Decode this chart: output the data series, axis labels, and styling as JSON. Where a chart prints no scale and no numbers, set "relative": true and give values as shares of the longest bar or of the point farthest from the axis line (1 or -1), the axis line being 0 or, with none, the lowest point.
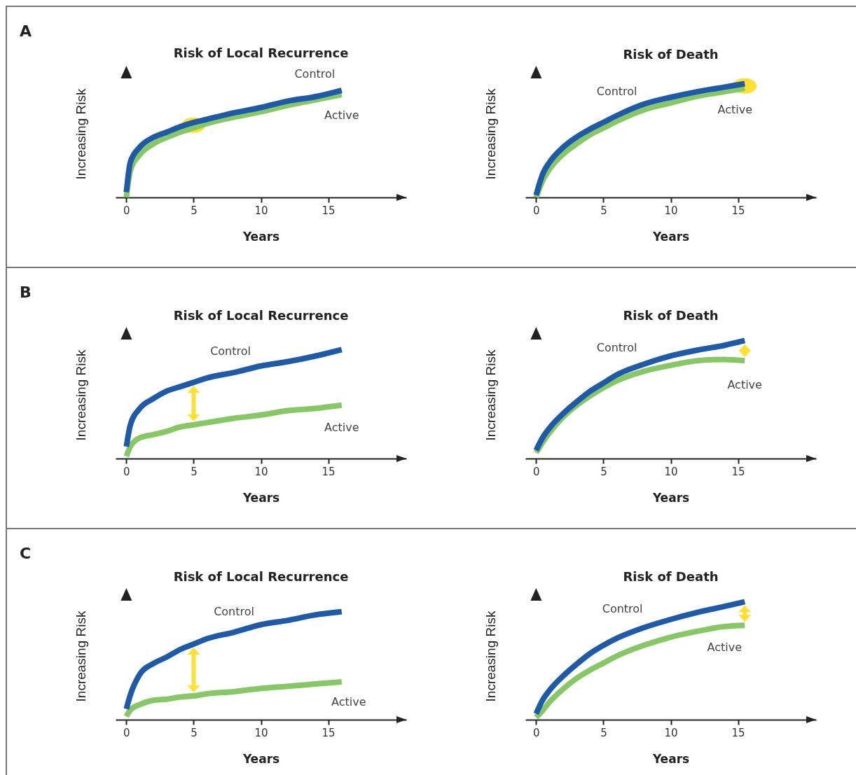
{
  "chart_data": [
    {
      "type": "line",
      "title": "Risk of Local Recurrence",
      "xlabel": "Years",
      "ylabel": "Increasing Risk",
      "relative": true,
      "xlim": [
        -0.8,
        20.8
      ],
      "xticks": [
        0,
        5,
        10,
        15
      ],
      "tick_labels": "x",
      "annotations": [
        "A"
      ],
      "series": [
        {
          "name": "Control",
          "color": "#1f5aa8",
          "x": [
            0,
            0.3,
            1,
            2,
            3,
            4,
            5,
            6,
            8,
            10,
            12,
            14,
            16
          ],
          "values": [
            0.05,
            0.33,
            0.47,
            0.56,
            0.61,
            0.66,
            0.7,
            0.73,
            0.79,
            0.84,
            0.9,
            0.94,
            1
          ]
        },
        {
          "name": "Active",
          "color": "#88c766",
          "x": [
            0,
            0.3,
            1,
            2,
            3,
            4,
            5,
            6,
            8,
            10,
            12,
            14,
            16
          ],
          "values": [
            0,
            0.25,
            0.4,
            0.5,
            0.56,
            0.61,
            0.65,
            0.69,
            0.75,
            0.8,
            0.86,
            0.91,
            0.96
          ]
        }
      ]
    },
    {
      "type": "line",
      "title": "Risk of Death",
      "xlabel": "Years",
      "ylabel": "Increasing Risk",
      "relative": true,
      "xlim": [
        -0.8,
        20.8
      ],
      "xticks": [
        0,
        5,
        10,
        15
      ],
      "tick_labels": "x",
      "series": [
        {
          "name": "Control",
          "color": "#1f5aa8",
          "x": [
            0,
            0.5,
            1,
            2,
            3,
            4,
            5,
            6,
            8,
            10,
            12,
            14,
            15.5
          ],
          "values": [
            0.02,
            0.21,
            0.31,
            0.44,
            0.53,
            0.6,
            0.66,
            0.72,
            0.82,
            0.88,
            0.93,
            0.97,
            1
          ]
        },
        {
          "name": "Active",
          "color": "#88c766",
          "x": [
            0,
            0.5,
            1,
            2,
            3,
            4,
            5,
            6,
            8,
            10,
            12,
            14,
            15.5
          ],
          "values": [
            0,
            0.15,
            0.25,
            0.38,
            0.47,
            0.55,
            0.61,
            0.67,
            0.77,
            0.83,
            0.89,
            0.93,
            0.96
          ]
        }
      ]
    },
    {
      "type": "line",
      "title": "Risk of Local Recurrence",
      "xlabel": "Years",
      "ylabel": "Increasing Risk",
      "relative": true,
      "xlim": [
        -0.8,
        20.8
      ],
      "xticks": [
        0,
        5,
        10,
        15
      ],
      "tick_labels": "x",
      "annotations": [
        "B"
      ],
      "series": [
        {
          "name": "Control",
          "color": "#1f5aa8",
          "x": [
            0,
            0.3,
            1,
            2,
            3,
            4,
            5,
            6,
            8,
            10,
            12,
            14,
            16
          ],
          "values": [
            0.11,
            0.31,
            0.46,
            0.55,
            0.62,
            0.66,
            0.7,
            0.74,
            0.79,
            0.85,
            0.89,
            0.94,
            1
          ]
        },
        {
          "name": "Active",
          "color": "#88c766",
          "x": [
            0,
            0.3,
            1,
            2,
            3,
            4,
            5,
            6,
            8,
            10,
            12,
            14,
            16
          ],
          "values": [
            0.02,
            0.11,
            0.19,
            0.22,
            0.25,
            0.29,
            0.31,
            0.33,
            0.37,
            0.4,
            0.44,
            0.46,
            0.49
          ]
        }
      ]
    },
    {
      "type": "line",
      "title": "Risk of Death",
      "xlabel": "Years",
      "ylabel": "Increasing Risk",
      "relative": true,
      "xlim": [
        -0.8,
        20.8
      ],
      "xticks": [
        0,
        5,
        10,
        15
      ],
      "tick_labels": "x",
      "series": [
        {
          "name": "Control",
          "color": "#1f5aa8",
          "x": [
            0,
            0.5,
            1,
            2,
            3,
            4,
            5,
            6,
            8,
            10,
            12,
            14,
            15.5
          ],
          "values": [
            0.07,
            0.18,
            0.26,
            0.38,
            0.48,
            0.57,
            0.64,
            0.71,
            0.8,
            0.87,
            0.92,
            0.96,
            1
          ]
        },
        {
          "name": "Active",
          "color": "#88c766",
          "x": [
            0,
            0.5,
            1,
            2,
            3,
            4,
            5,
            6,
            8,
            10,
            12,
            14,
            15.5
          ],
          "values": [
            0.05,
            0.14,
            0.22,
            0.35,
            0.45,
            0.53,
            0.6,
            0.66,
            0.74,
            0.79,
            0.83,
            0.84,
            0.83
          ]
        }
      ]
    },
    {
      "type": "line",
      "title": "Risk of Local Recurrence",
      "xlabel": "Years",
      "ylabel": "Increasing Risk",
      "relative": true,
      "xlim": [
        -0.8,
        20.8
      ],
      "xticks": [
        0,
        5,
        10,
        15
      ],
      "tick_labels": "x",
      "annotations": [
        "C"
      ],
      "series": [
        {
          "name": "Control",
          "color": "#1f5aa8",
          "x": [
            0,
            0.3,
            1,
            2,
            3,
            4,
            5,
            6,
            8,
            10,
            12,
            14,
            16
          ],
          "values": [
            0.1,
            0.23,
            0.42,
            0.52,
            0.58,
            0.65,
            0.7,
            0.75,
            0.81,
            0.88,
            0.92,
            0.97,
            1
          ]
        },
        {
          "name": "Active",
          "color": "#88c766",
          "x": [
            0,
            0.3,
            1,
            2,
            3,
            4,
            5,
            6,
            8,
            10,
            12,
            14,
            16
          ],
          "values": [
            0.03,
            0.09,
            0.14,
            0.18,
            0.19,
            0.21,
            0.22,
            0.24,
            0.26,
            0.29,
            0.31,
            0.33,
            0.35
          ]
        }
      ]
    },
    {
      "type": "line",
      "title": "Risk of Death",
      "xlabel": "Years",
      "ylabel": "Increasing Risk",
      "relative": true,
      "xlim": [
        -0.8,
        20.8
      ],
      "xticks": [
        0,
        5,
        10,
        15
      ],
      "tick_labels": "x",
      "series": [
        {
          "name": "Control",
          "color": "#1f5aa8",
          "x": [
            0,
            0.5,
            1,
            2,
            3,
            4,
            5,
            6,
            8,
            10,
            12,
            14,
            15.5
          ],
          "values": [
            0.05,
            0.17,
            0.25,
            0.37,
            0.47,
            0.56,
            0.63,
            0.69,
            0.78,
            0.85,
            0.91,
            0.96,
            1
          ]
        },
        {
          "name": "Active",
          "color": "#88c766",
          "x": [
            0,
            0.5,
            1,
            2,
            3,
            4,
            5,
            6,
            8,
            10,
            12,
            14,
            15.5
          ],
          "values": [
            0.02,
            0.08,
            0.15,
            0.26,
            0.35,
            0.42,
            0.48,
            0.54,
            0.63,
            0.7,
            0.75,
            0.79,
            0.8
          ]
        }
      ]
    }
  ]
}
